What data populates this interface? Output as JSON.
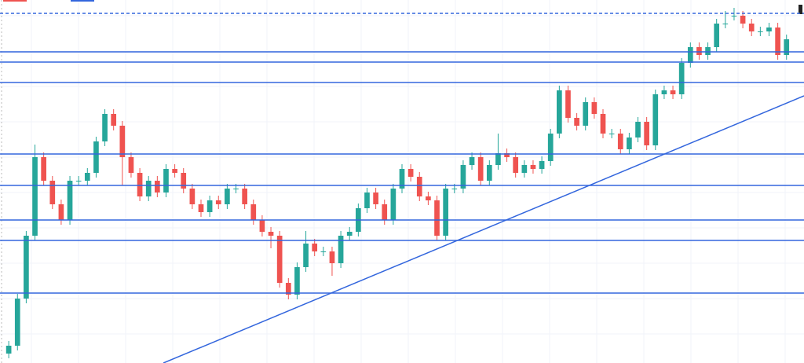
{
  "chart_data": {
    "type": "candlestick",
    "up_color": "#26a69a",
    "down_color": "#ef5350",
    "line_color": "#3366dd",
    "xlim": [
      -1,
      91
    ],
    "ylim": [
      0,
      462
    ],
    "grid": true,
    "ohlc": [
      [
        12,
        28,
        6,
        22
      ],
      [
        22,
        88,
        16,
        82
      ],
      [
        82,
        168,
        76,
        162
      ],
      [
        162,
        278,
        156,
        262
      ],
      [
        262,
        268,
        226,
        232
      ],
      [
        232,
        238,
        196,
        202
      ],
      [
        202,
        208,
        176,
        182
      ],
      [
        182,
        238,
        176,
        232
      ],
      [
        232,
        238,
        226,
        232
      ],
      [
        232,
        248,
        226,
        242
      ],
      [
        242,
        288,
        236,
        282
      ],
      [
        282,
        323,
        276,
        317
      ],
      [
        317,
        323,
        296,
        302
      ],
      [
        302,
        308,
        226,
        262
      ],
      [
        262,
        268,
        236,
        242
      ],
      [
        242,
        248,
        206,
        212
      ],
      [
        212,
        238,
        206,
        232
      ],
      [
        232,
        238,
        211,
        217
      ],
      [
        217,
        253,
        211,
        247
      ],
      [
        247,
        253,
        236,
        242
      ],
      [
        242,
        248,
        216,
        222
      ],
      [
        222,
        228,
        196,
        202
      ],
      [
        202,
        208,
        186,
        192
      ],
      [
        192,
        213,
        186,
        207
      ],
      [
        207,
        213,
        196,
        202
      ],
      [
        202,
        228,
        196,
        222
      ],
      [
        222,
        228,
        216,
        222
      ],
      [
        222,
        228,
        196,
        202
      ],
      [
        202,
        208,
        176,
        182
      ],
      [
        182,
        188,
        161,
        167
      ],
      [
        167,
        173,
        146,
        162
      ],
      [
        162,
        168,
        96,
        102
      ],
      [
        102,
        108,
        81,
        87
      ],
      [
        87,
        128,
        81,
        122
      ],
      [
        122,
        168,
        116,
        152
      ],
      [
        152,
        158,
        136,
        142
      ],
      [
        142,
        148,
        136,
        142
      ],
      [
        142,
        148,
        111,
        127
      ],
      [
        127,
        168,
        121,
        162
      ],
      [
        162,
        173,
        156,
        167
      ],
      [
        167,
        203,
        161,
        197
      ],
      [
        197,
        223,
        191,
        217
      ],
      [
        217,
        223,
        196,
        202
      ],
      [
        202,
        208,
        176,
        182
      ],
      [
        182,
        228,
        176,
        222
      ],
      [
        222,
        253,
        216,
        247
      ],
      [
        247,
        253,
        231,
        237
      ],
      [
        237,
        243,
        206,
        212
      ],
      [
        212,
        218,
        201,
        207
      ],
      [
        207,
        213,
        156,
        162
      ],
      [
        162,
        228,
        156,
        222
      ],
      [
        222,
        228,
        216,
        222
      ],
      [
        222,
        258,
        216,
        252
      ],
      [
        252,
        268,
        246,
        262
      ],
      [
        262,
        268,
        226,
        232
      ],
      [
        232,
        258,
        226,
        252
      ],
      [
        252,
        292,
        246,
        267
      ],
      [
        267,
        273,
        256,
        262
      ],
      [
        262,
        268,
        236,
        242
      ],
      [
        242,
        258,
        236,
        252
      ],
      [
        252,
        258,
        241,
        247
      ],
      [
        247,
        263,
        241,
        257
      ],
      [
        257,
        298,
        251,
        292
      ],
      [
        292,
        353,
        286,
        347
      ],
      [
        347,
        353,
        306,
        312
      ],
      [
        312,
        318,
        296,
        302
      ],
      [
        302,
        338,
        296,
        332
      ],
      [
        332,
        338,
        311,
        317
      ],
      [
        317,
        323,
        286,
        292
      ],
      [
        292,
        298,
        286,
        292
      ],
      [
        292,
        298,
        266,
        272
      ],
      [
        272,
        293,
        266,
        287
      ],
      [
        287,
        313,
        281,
        307
      ],
      [
        307,
        313,
        271,
        277
      ],
      [
        277,
        348,
        271,
        342
      ],
      [
        342,
        353,
        336,
        347
      ],
      [
        347,
        353,
        336,
        342
      ],
      [
        342,
        388,
        336,
        382
      ],
      [
        382,
        408,
        376,
        402
      ],
      [
        402,
        408,
        386,
        392
      ],
      [
        392,
        408,
        386,
        402
      ],
      [
        402,
        438,
        396,
        432
      ],
      [
        432,
        448,
        426,
        432
      ],
      [
        442,
        452,
        436,
        442
      ],
      [
        442,
        448,
        426,
        432
      ],
      [
        432,
        438,
        416,
        422
      ],
      [
        422,
        428,
        416,
        422
      ],
      [
        422,
        433,
        416,
        427
      ],
      [
        427,
        433,
        386,
        392
      ],
      [
        392,
        418,
        386,
        412
      ]
    ],
    "levels": [
      {
        "value": 445,
        "style": "dashed"
      },
      {
        "value": 396,
        "style": "solid"
      },
      {
        "value": 383,
        "style": "solid"
      },
      {
        "value": 357,
        "style": "solid"
      },
      {
        "value": 266,
        "style": "solid"
      },
      {
        "value": 226,
        "style": "solid"
      },
      {
        "value": 182,
        "style": "solid"
      },
      {
        "value": 156,
        "style": "solid"
      },
      {
        "value": 89,
        "style": "solid"
      }
    ],
    "trend_line": [
      {
        "x": 17.7,
        "y": 0
      },
      {
        "x": 91,
        "y": 340
      }
    ]
  }
}
